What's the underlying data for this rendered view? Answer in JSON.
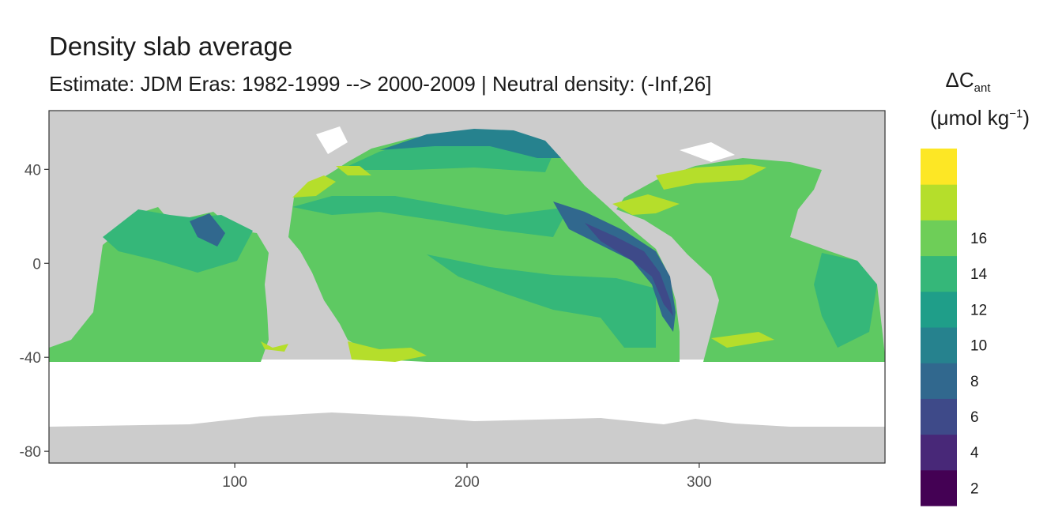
{
  "title": "Density slab average",
  "subtitle": "Estimate: JDM Eras: 1982-1999 --> 2000-2009 | Neutral density: (-Inf,26]",
  "legend": {
    "title_symbol": "ΔC",
    "title_subscript": "ant",
    "unit_open": "(μmol kg",
    "unit_sup": "−1",
    "unit_close": ")",
    "breaks": [
      {
        "label": "2",
        "color": "#440154"
      },
      {
        "label": "4",
        "color": "#482878"
      },
      {
        "label": "6",
        "color": "#3e4a89"
      },
      {
        "label": "8",
        "color": "#31688e"
      },
      {
        "label": "10",
        "color": "#26828e"
      },
      {
        "label": "12",
        "color": "#1f9e89"
      },
      {
        "label": "14",
        "color": "#35b779"
      },
      {
        "label": "16",
        "color": "#6ece58"
      },
      {
        "label": "",
        "color": "#b5de2b"
      },
      {
        "label": "",
        "color": "#fde725"
      }
    ]
  },
  "chart_data": {
    "type": "heatmap",
    "x_ticks": [
      100,
      200,
      300
    ],
    "y_ticks": [
      40,
      0,
      -40,
      -80
    ],
    "xlim": [
      20,
      380
    ],
    "ylim": [
      -85,
      65
    ],
    "land_color": "#cccccc",
    "no_data_band_lat": [
      -70,
      -40
    ]
  }
}
